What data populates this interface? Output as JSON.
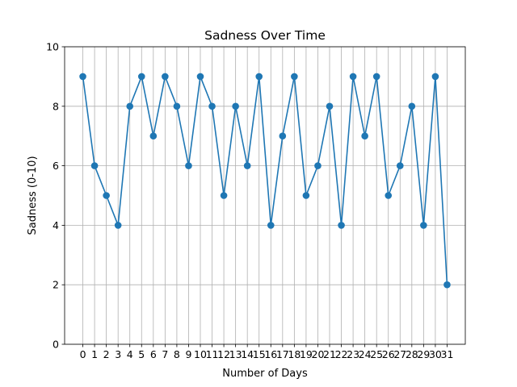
{
  "chart_data": {
    "type": "line",
    "title": "Sadness Over Time",
    "xlabel": "Number of Days",
    "ylabel": "Sadness (0-10)",
    "x": [
      0,
      1,
      2,
      3,
      4,
      5,
      6,
      7,
      8,
      9,
      10,
      11,
      12,
      13,
      14,
      15,
      16,
      17,
      18,
      19,
      20,
      21,
      22,
      23,
      24,
      25,
      26,
      27,
      28,
      29,
      30,
      31
    ],
    "series": [
      {
        "name": "",
        "values": [
          9,
          6,
          5,
          4,
          8,
          9,
          7,
          9,
          8,
          6,
          9,
          8,
          5,
          8,
          6,
          9,
          4,
          7,
          9,
          5,
          6,
          8,
          4,
          9,
          7,
          9,
          5,
          6,
          8,
          4,
          9,
          2
        ],
        "color": "#1f77b4",
        "marker": "circle"
      }
    ],
    "xticks": [
      0,
      1,
      2,
      3,
      4,
      5,
      6,
      7,
      8,
      9,
      10,
      11,
      12,
      13,
      14,
      15,
      16,
      17,
      18,
      19,
      20,
      21,
      22,
      23,
      24,
      25,
      26,
      27,
      28,
      29,
      30,
      31
    ],
    "yticks": [
      0,
      2,
      4,
      6,
      8,
      10
    ],
    "xlim": [
      -1.55,
      32.55
    ],
    "ylim": [
      0,
      10
    ],
    "grid": true,
    "legend": false
  }
}
